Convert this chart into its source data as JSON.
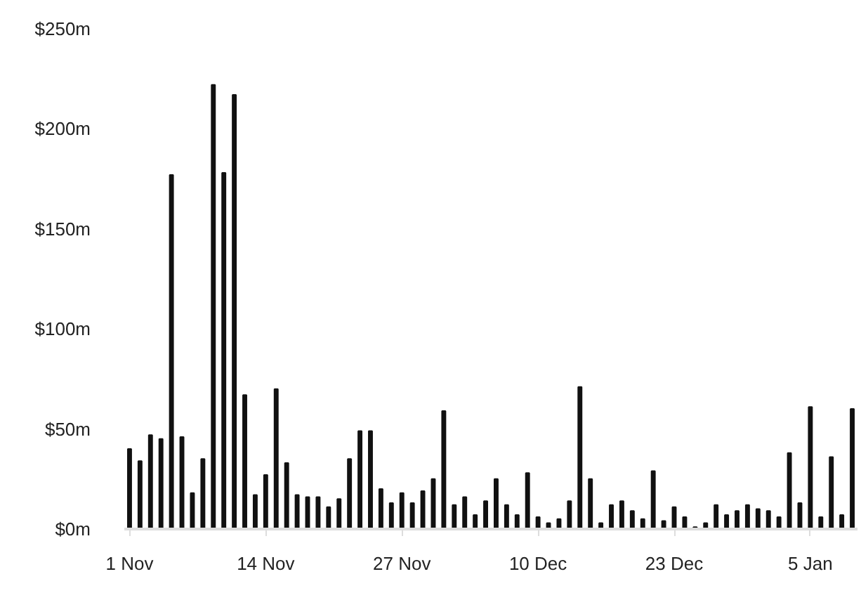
{
  "chart_data": {
    "type": "bar",
    "color": "#111111",
    "categories": [
      "1 Nov",
      null,
      null,
      null,
      null,
      null,
      null,
      null,
      null,
      null,
      null,
      null,
      null,
      "14 Nov",
      null,
      null,
      null,
      null,
      null,
      null,
      null,
      null,
      null,
      null,
      null,
      null,
      "27 Nov",
      null,
      null,
      null,
      null,
      null,
      null,
      null,
      null,
      null,
      null,
      null,
      null,
      "10 Dec",
      null,
      null,
      null,
      null,
      null,
      null,
      null,
      null,
      null,
      null,
      null,
      null,
      "23 Dec",
      null,
      null,
      null,
      null,
      null,
      null,
      null,
      null,
      null,
      null,
      null,
      null,
      "5 Jan",
      null,
      null,
      null,
      null
    ],
    "values": [
      40,
      34,
      47,
      45,
      177,
      46,
      18,
      35,
      222,
      178,
      217,
      67,
      17,
      27,
      70,
      33,
      17,
      16,
      16,
      11,
      15,
      35,
      49,
      49,
      20,
      13,
      18,
      13,
      19,
      25,
      59,
      12,
      16,
      7,
      14,
      25,
      12,
      7,
      28,
      6,
      3,
      5,
      14,
      71,
      25,
      3,
      12,
      14,
      9,
      5,
      29,
      4,
      11,
      6,
      1,
      3,
      12,
      7,
      9,
      12,
      10,
      9,
      6,
      38,
      13,
      61,
      6,
      36,
      7,
      60
    ],
    "ylim": [
      0,
      250
    ],
    "yticks": [
      {
        "value": 0,
        "label": "$0m"
      },
      {
        "value": 50,
        "label": "$50m"
      },
      {
        "value": 100,
        "label": "$100m"
      },
      {
        "value": 150,
        "label": "$150m"
      },
      {
        "value": 200,
        "label": "$200m"
      },
      {
        "value": 250,
        "label": "$250m"
      }
    ]
  }
}
